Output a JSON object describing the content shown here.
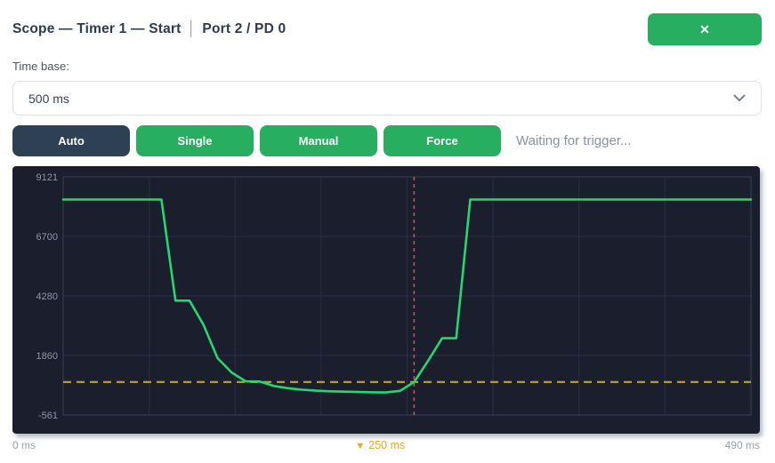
{
  "header": {
    "title": "Scope — Timer 1 — Start",
    "separator": "│",
    "subtitle": "Port 2 / PD 0",
    "close_label": "✕"
  },
  "timebase": {
    "label": "Time base:",
    "value": "500 ms"
  },
  "controls": {
    "buttons": [
      {
        "label": "Auto"
      },
      {
        "label": "Single"
      },
      {
        "label": "Manual"
      },
      {
        "label": "Force"
      }
    ],
    "status": "Waiting for trigger..."
  },
  "chart_data": {
    "type": "line",
    "title": "",
    "x_ms": [
      0,
      10,
      20,
      30,
      40,
      50,
      60,
      70,
      80,
      90,
      100,
      110,
      120,
      130,
      140,
      150,
      160,
      170,
      180,
      190,
      200,
      210,
      220,
      230,
      240,
      250,
      260,
      270,
      280,
      290,
      300,
      310,
      320,
      330,
      340,
      350,
      360,
      370,
      380,
      390,
      400,
      410,
      420,
      430,
      440,
      450,
      460,
      470,
      480,
      490
    ],
    "values": [
      8200,
      8200,
      8200,
      8200,
      8200,
      8200,
      8200,
      8200,
      4090,
      4090,
      3100,
      1750,
      1170,
      810,
      800,
      620,
      530,
      470,
      430,
      405,
      390,
      375,
      365,
      355,
      420,
      780,
      1650,
      2560,
      2560,
      8200,
      8200,
      8200,
      8200,
      8200,
      8200,
      8200,
      8200,
      8200,
      8200,
      8200,
      8200,
      8200,
      8200,
      8200,
      8200,
      8200,
      8200,
      8200,
      8200,
      8200
    ],
    "y_ticks": [
      9121,
      6700,
      4280,
      1860,
      -561
    ],
    "y_range": [
      -561,
      9121
    ],
    "x_range_ms": [
      0,
      490
    ],
    "x_gridline_count": 8,
    "grid": true,
    "trigger": {
      "time_ms": 250,
      "level": 780,
      "time_label": "250 ms",
      "marker": "▼"
    },
    "x_axis_labels": {
      "start": "0 ms",
      "end": "490 ms"
    },
    "colors": {
      "background": "#1b1e2d",
      "grid": "#292e45",
      "plot_border": "#3a4158",
      "tick_text": "#8f96a5",
      "waveform": "#24d871",
      "trigger_level_line": "#b8992b",
      "trigger_time_line": "#c05060"
    }
  },
  "accent": {
    "green": "#27ae60",
    "dark_navy": "#2e4154"
  }
}
